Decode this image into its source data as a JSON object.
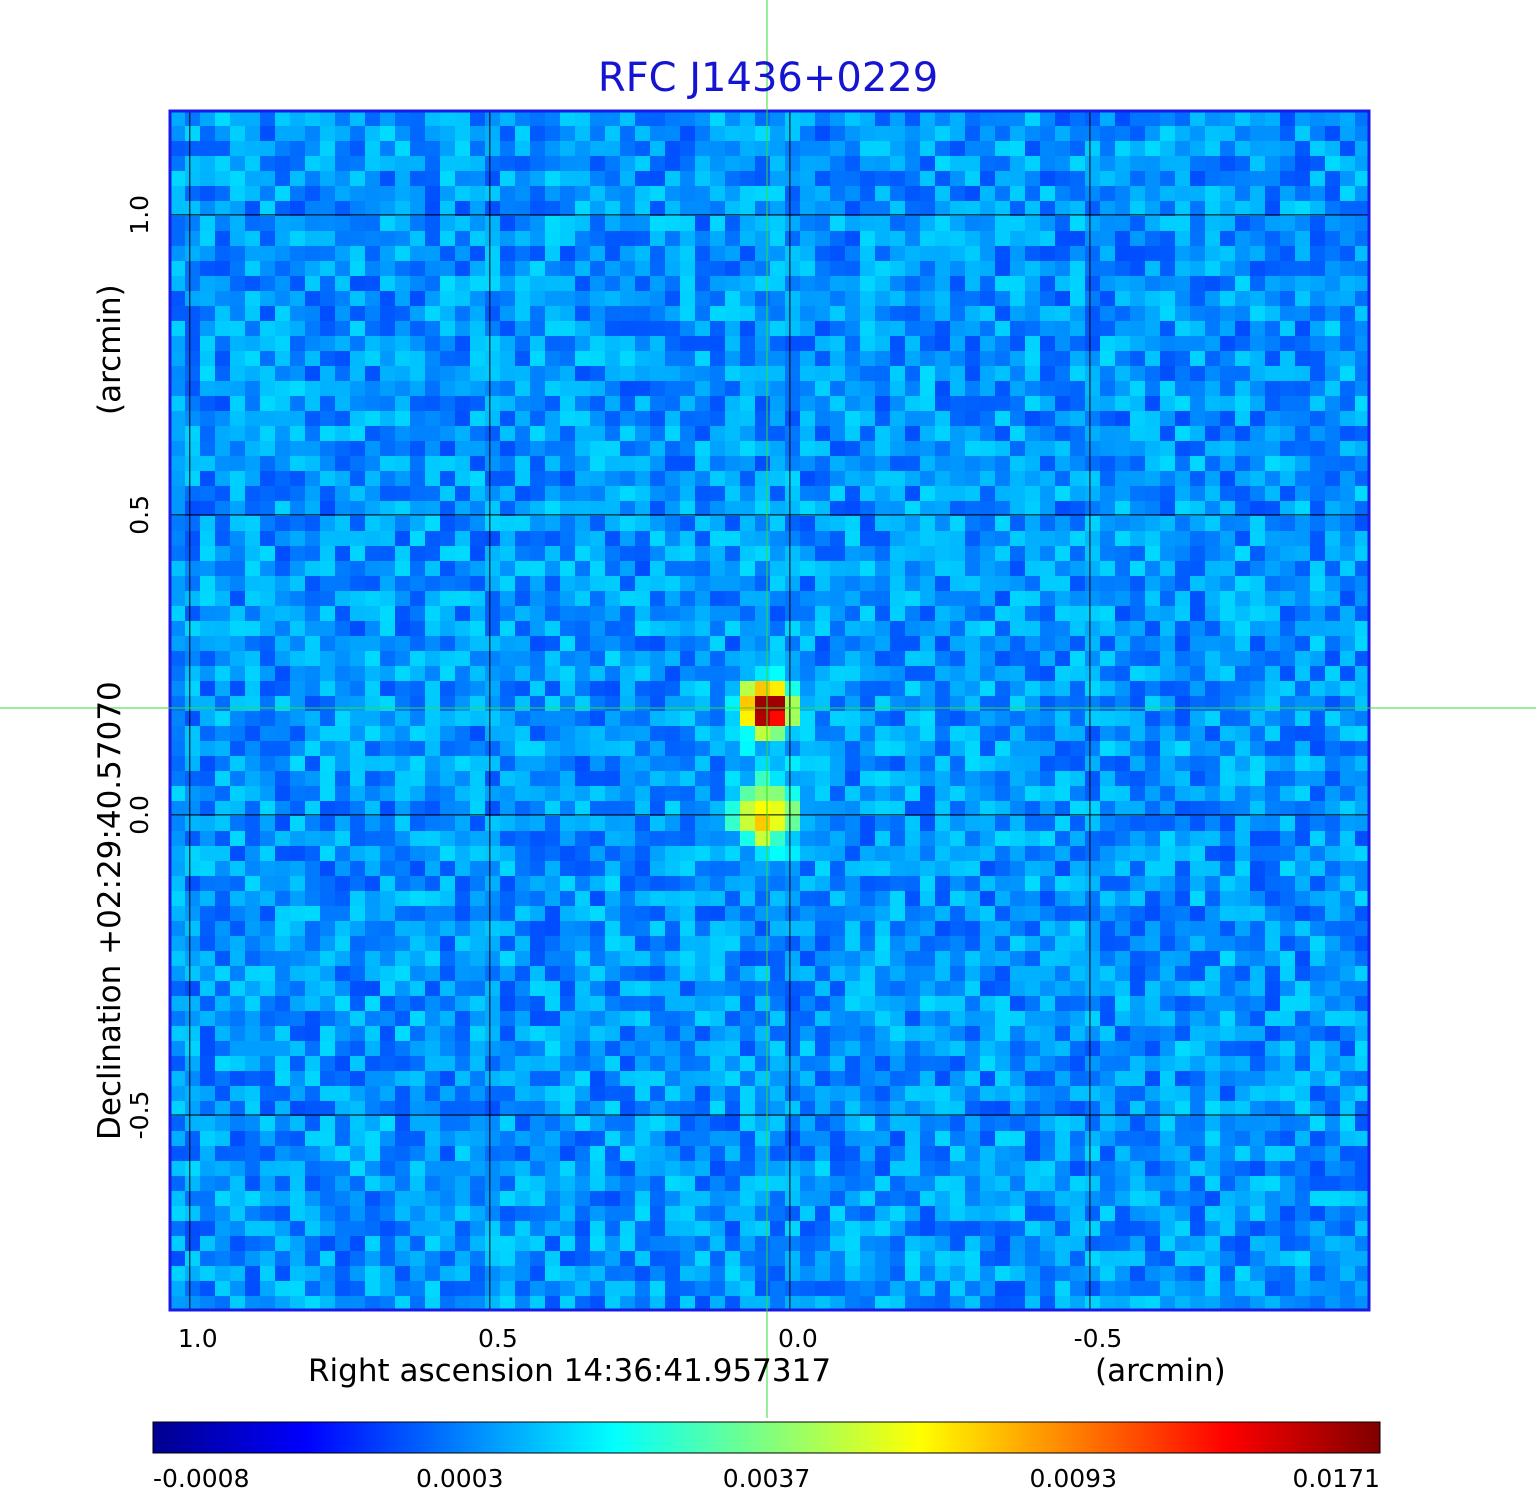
{
  "chart_data": {
    "type": "image",
    "title": "RFC J1436+0229",
    "xlabel": "Right ascension  14:36:41.957317",
    "xunit": "(arcmin)",
    "ylabel": "Declination  +02:29:40.57070",
    "yunit": "(arcmin)",
    "xlim": [
      1.033,
      -0.965
    ],
    "ylim": [
      -0.825,
      1.173
    ],
    "xticks": [
      {
        "value": 1,
        "label": "1.0"
      },
      0.5,
      {
        "value": 0,
        "label": "0.0"
      },
      -0.5
    ],
    "yticks": [
      {
        "value": 1,
        "label": "1.0"
      },
      0.5,
      {
        "value": 0,
        "label": "0.0"
      },
      -0.5
    ],
    "grid": true,
    "colormap": "jet",
    "colorbar_ticks": [
      -0.0008,
      0.0003,
      0.0037,
      0.0093,
      0.0171
    ]
  }
}
